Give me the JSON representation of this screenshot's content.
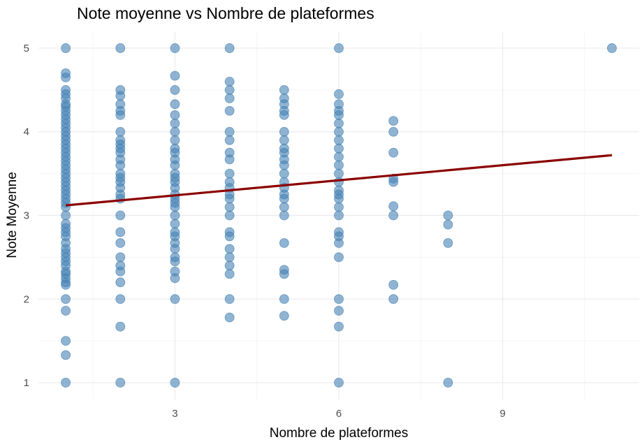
{
  "chart_data": {
    "type": "scatter",
    "title": "Note moyenne vs Nombre de plateformes",
    "xlabel": "Nombre de plateformes",
    "ylabel": "Note Moyenne",
    "xlim": [
      0.5,
      11.5
    ],
    "ylim": [
      0.8,
      5.2
    ],
    "x_ticks": [
      3,
      6,
      9
    ],
    "y_ticks": [
      1,
      2,
      3,
      4,
      5
    ],
    "x_minor_breaks": [
      1.5,
      4.5,
      7.5,
      10.5
    ],
    "y_minor_breaks": [
      1.5,
      2.5,
      3.5,
      4.5
    ],
    "grid": true,
    "legend": "none",
    "point_color": "#4682b4",
    "line_color": "#8b0000",
    "points": [
      {
        "x": 1,
        "ys": [
          5,
          4.7,
          4.65,
          4.5,
          4.45,
          4.4,
          4.33,
          4.3,
          4.25,
          4.2,
          4.15,
          4.1,
          4.05,
          4.0,
          3.95,
          3.9,
          3.85,
          3.8,
          3.75,
          3.7,
          3.65,
          3.6,
          3.55,
          3.5,
          3.45,
          3.4,
          3.35,
          3.3,
          3.25,
          3.2,
          3.15,
          3.1,
          3.0,
          2.9,
          2.85,
          2.8,
          2.75,
          2.67,
          2.6,
          2.55,
          2.5,
          2.45,
          2.4,
          2.33,
          2.3,
          2.25,
          2.2,
          2.17,
          2.0,
          1.86,
          1.5,
          1.33,
          1.0
        ]
      },
      {
        "x": 2,
        "ys": [
          5,
          4.5,
          4.43,
          4.33,
          4.25,
          4.2,
          4.0,
          3.9,
          3.85,
          3.8,
          3.75,
          3.67,
          3.6,
          3.5,
          3.45,
          3.4,
          3.33,
          3.25,
          3.2,
          3.0,
          2.8,
          2.67,
          2.5,
          2.4,
          2.33,
          2.2,
          2.0,
          1.67,
          1.0
        ]
      },
      {
        "x": 3,
        "ys": [
          5,
          4.67,
          4.5,
          4.33,
          4.2,
          4.1,
          4.0,
          3.9,
          3.8,
          3.75,
          3.67,
          3.6,
          3.5,
          3.45,
          3.4,
          3.33,
          3.25,
          3.2,
          3.15,
          3.1,
          3.0,
          2.9,
          2.8,
          2.75,
          2.67,
          2.6,
          2.5,
          2.45,
          2.33,
          2.25,
          2.0,
          1.0
        ]
      },
      {
        "x": 4,
        "ys": [
          5,
          4.6,
          4.5,
          4.4,
          4.25,
          4.0,
          3.9,
          3.75,
          3.67,
          3.5,
          3.4,
          3.33,
          3.25,
          3.2,
          3.1,
          3.0,
          2.8,
          2.75,
          2.6,
          2.5,
          2.4,
          2.3,
          2.0,
          1.78
        ]
      },
      {
        "x": 5,
        "ys": [
          4.5,
          4.4,
          4.33,
          4.25,
          4.2,
          4.0,
          3.9,
          3.8,
          3.75,
          3.67,
          3.6,
          3.5,
          3.4,
          3.33,
          3.25,
          3.2,
          3.1,
          3.0,
          2.67,
          2.35,
          2.3,
          2.0,
          1.8
        ]
      },
      {
        "x": 6,
        "ys": [
          5,
          4.45,
          4.33,
          4.25,
          4.2,
          4.1,
          4.0,
          3.9,
          3.8,
          3.7,
          3.6,
          3.5,
          3.4,
          3.3,
          3.25,
          3.2,
          3.1,
          3.0,
          2.8,
          2.75,
          2.67,
          2.5,
          2.0,
          1.86,
          1.67,
          1.0
        ]
      },
      {
        "x": 7,
        "ys": [
          4.13,
          4.0,
          3.75,
          3.44,
          3.4,
          3.11,
          3.0,
          2.17,
          2.0
        ]
      },
      {
        "x": 8,
        "ys": [
          3.0,
          2.89,
          2.67,
          1.0
        ]
      },
      {
        "x": 11,
        "ys": [
          5.0
        ]
      }
    ],
    "trend_line": {
      "x": [
        1,
        11
      ],
      "y": [
        3.12,
        3.72
      ]
    }
  }
}
